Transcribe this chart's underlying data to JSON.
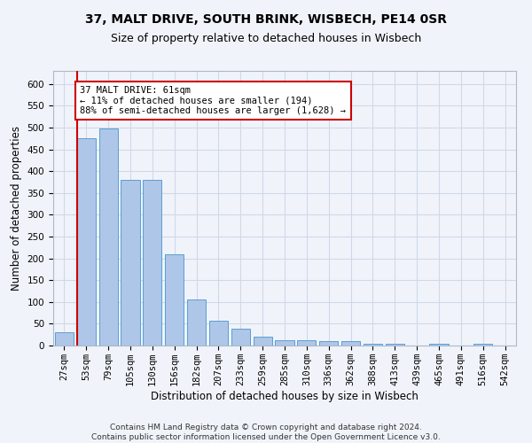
{
  "title": "37, MALT DRIVE, SOUTH BRINK, WISBECH, PE14 0SR",
  "subtitle": "Size of property relative to detached houses in Wisbech",
  "xlabel": "Distribution of detached houses by size in Wisbech",
  "ylabel": "Number of detached properties",
  "bar_color": "#aec6e8",
  "bar_edge_color": "#5a9fd4",
  "grid_color": "#d0d8e8",
  "background_color": "#f0f4fa",
  "annotation_box_color": "#ffffff",
  "annotation_box_edge": "#cc0000",
  "vline_color": "#cc0000",
  "vline_x_idx": 1,
  "annotation_text": "37 MALT DRIVE: 61sqm\n← 11% of detached houses are smaller (194)\n88% of semi-detached houses are larger (1,628) →",
  "categories": [
    "27sqm",
    "53sqm",
    "79sqm",
    "105sqm",
    "130sqm",
    "156sqm",
    "182sqm",
    "207sqm",
    "233sqm",
    "259sqm",
    "285sqm",
    "310sqm",
    "336sqm",
    "362sqm",
    "388sqm",
    "413sqm",
    "439sqm",
    "465sqm",
    "491sqm",
    "516sqm",
    "542sqm"
  ],
  "values": [
    30,
    475,
    497,
    380,
    380,
    210,
    105,
    57,
    38,
    20,
    13,
    13,
    10,
    10,
    5,
    5,
    0,
    5,
    0,
    5,
    0
  ],
  "ylim": [
    0,
    630
  ],
  "yticks": [
    0,
    50,
    100,
    150,
    200,
    250,
    300,
    350,
    400,
    450,
    500,
    550,
    600
  ],
  "footer": "Contains HM Land Registry data © Crown copyright and database right 2024.\nContains public sector information licensed under the Open Government Licence v3.0.",
  "title_fontsize": 10,
  "subtitle_fontsize": 9,
  "xlabel_fontsize": 8.5,
  "ylabel_fontsize": 8.5,
  "tick_fontsize": 7.5,
  "annotation_fontsize": 7.5,
  "footer_fontsize": 6.5
}
